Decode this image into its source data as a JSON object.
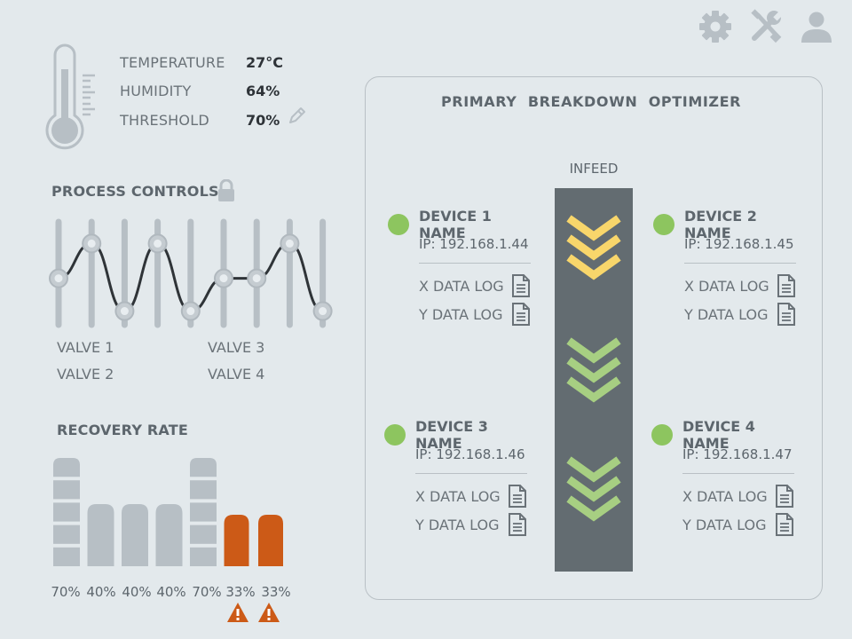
{
  "environment": {
    "rows": [
      {
        "label": "TEMPERATURE",
        "value": "27°C"
      },
      {
        "label": "HUMIDITY",
        "value": "64%"
      },
      {
        "label": "THRESHOLD",
        "value": "70%"
      }
    ]
  },
  "process_controls": {
    "title": "PROCESS CONTROLS",
    "valves": [
      "VALVE 1",
      "VALVE 2",
      "VALVE 3",
      "VALVE 4"
    ],
    "slider_levels": [
      0.45,
      0.8,
      0.12,
      0.8,
      0.12,
      0.45,
      0.45,
      0.8,
      0.12
    ]
  },
  "recovery_rate": {
    "title": "RECOVERY RATE",
    "bars": [
      {
        "value": "70%",
        "status": "normal"
      },
      {
        "value": "40%",
        "status": "normal"
      },
      {
        "value": "40%",
        "status": "normal"
      },
      {
        "value": "40%",
        "status": "normal"
      },
      {
        "value": "70%",
        "status": "normal"
      },
      {
        "value": "33%",
        "status": "warning"
      },
      {
        "value": "33%",
        "status": "warning"
      }
    ]
  },
  "optimizer": {
    "title": "PRIMARY  BREAKDOWN  OPTIMIZER",
    "infeed_label": "INFEED",
    "devices": [
      {
        "name": "DEVICE 1 NAME",
        "ip": "IP: 192.168.1.44",
        "status": "online",
        "logs": [
          "X DATA LOG",
          "Y DATA LOG"
        ]
      },
      {
        "name": "DEVICE 2 NAME",
        "ip": "IP: 192.168.1.45",
        "status": "online",
        "logs": [
          "X DATA LOG",
          "Y DATA LOG"
        ]
      },
      {
        "name": "DEVICE 3 NAME",
        "ip": "IP: 192.168.1.46",
        "status": "online",
        "logs": [
          "X DATA LOG",
          "Y DATA LOG"
        ]
      },
      {
        "name": "DEVICE 4 NAME",
        "ip": "IP: 192.168.1.47",
        "status": "online",
        "logs": [
          "X DATA LOG",
          "Y DATA LOG"
        ]
      }
    ]
  },
  "colors": {
    "background": "#e3e9ec",
    "icon_gray": "#b7bfc5",
    "status_online": "#8dc55f",
    "warning": "#cc5a17",
    "chevron_yellow": "#f8d66b",
    "chevron_green": "#a7cf82",
    "conveyor": "#636c71"
  },
  "icons": [
    "gear-icon",
    "tools-icon",
    "user-icon",
    "thermometer-icon",
    "pencil-icon",
    "lock-icon",
    "document-icon",
    "warning-icon"
  ]
}
